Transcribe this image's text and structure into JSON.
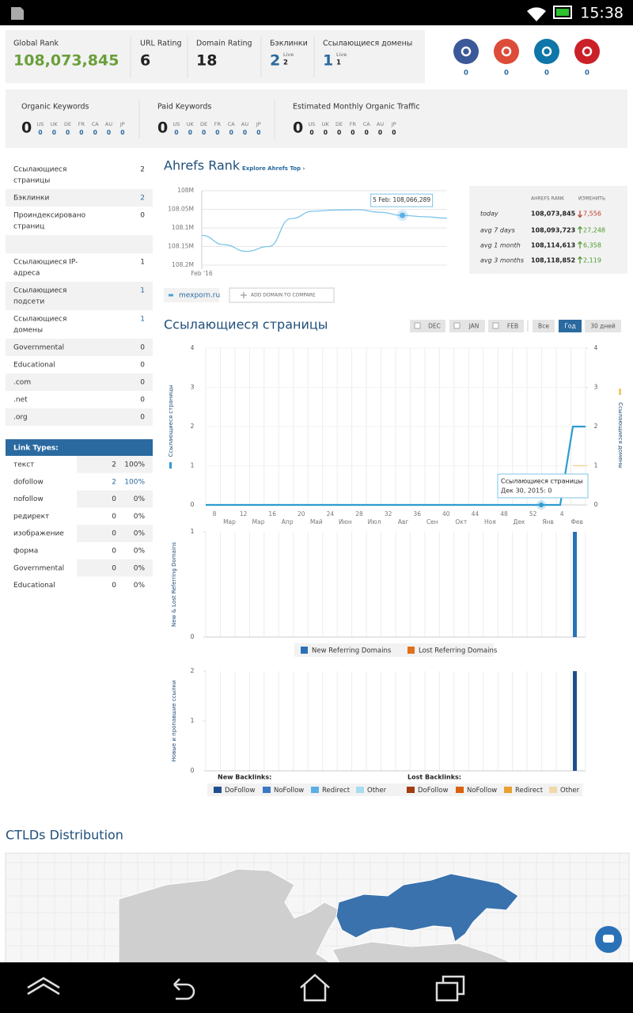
{
  "status_bar": {
    "time": "15:38"
  },
  "metrics": [
    {
      "label": "Global Rank",
      "value": "108,073,845"
    },
    {
      "label": "URL Rating",
      "value": "6"
    },
    {
      "label": "Domain Rating",
      "value": "18"
    },
    {
      "label": "Бэклинки",
      "value": "2",
      "live_label": "Live",
      "live_value": "2"
    },
    {
      "label": "Ссылающиеся домены",
      "value": "1",
      "live_label": "Live",
      "live_value": "1"
    }
  ],
  "social_counts": [
    "0",
    "0",
    "0",
    "0"
  ],
  "keywords": [
    {
      "label": "Organic Keywords",
      "value": "0",
      "countries": [
        "US",
        "UK",
        "DE",
        "FR",
        "CA",
        "AU",
        "JP"
      ],
      "counts": [
        "0",
        "0",
        "0",
        "0",
        "0",
        "0",
        "0"
      ]
    },
    {
      "label": "Paid Keywords",
      "value": "0",
      "countries": [
        "US",
        "UK",
        "DE",
        "FR",
        "CA",
        "AU",
        "JP"
      ],
      "counts": [
        "0",
        "0",
        "0",
        "0",
        "0",
        "0",
        "0"
      ]
    },
    {
      "label": "Estimated Monthly Organic Traffic",
      "value": "0",
      "countries": [
        "US",
        "UK",
        "DE",
        "FR",
        "CA",
        "AU",
        "JP"
      ],
      "counts": [
        "0",
        "0",
        "0",
        "0",
        "0",
        "0",
        "0"
      ]
    }
  ],
  "sidebar": [
    {
      "label": [
        "Ссылающиеся",
        "страницы"
      ],
      "value": "2"
    },
    {
      "label": [
        "Бэклинки"
      ],
      "value": "2",
      "linked": true
    },
    {
      "label": [
        "Проиндексировано",
        "страниц"
      ],
      "value": "0"
    },
    {
      "label": [
        "Ссылающиеся IP-",
        "адреса"
      ],
      "value": "1"
    },
    {
      "label": [
        "Ссылающиеся",
        "подсети"
      ],
      "value": "1",
      "linked": true
    },
    {
      "label": [
        "Ссылающиеся",
        "домены"
      ],
      "value": "1",
      "linked": true
    },
    {
      "label": [
        "Governmental"
      ],
      "value": "0"
    },
    {
      "label": [
        "Educational"
      ],
      "value": "0"
    },
    {
      "label": [
        ".com"
      ],
      "value": "0"
    },
    {
      "label": [
        ".net"
      ],
      "value": "0"
    },
    {
      "label": [
        ".org"
      ],
      "value": "0"
    }
  ],
  "link_types": {
    "title": "Link Types:",
    "rows": [
      [
        "текст",
        "2",
        "100%"
      ],
      [
        "dofollow",
        "2",
        "100%"
      ],
      [
        "nofollow",
        "0",
        "0%"
      ],
      [
        "редирект",
        "0",
        "0%"
      ],
      [
        "изображение",
        "0",
        "0%"
      ],
      [
        "форма",
        "0",
        "0%"
      ],
      [
        "Governmental",
        "0",
        "0%"
      ],
      [
        "Educational",
        "0",
        "0%"
      ]
    ],
    "linked_rows": [
      1
    ]
  },
  "rank": {
    "title": "Ahrefs Rank",
    "link": "Explore Ahrefs Top ›",
    "chart": {
      "type": "line",
      "xlabel": "Feb '16",
      "color": "#7cc4e8",
      "ylim": [
        108200000,
        108000000
      ],
      "yticks": [
        {
          "value": 108000000,
          "label": "108M"
        },
        {
          "value": 108050000,
          "label": "108.05M"
        },
        {
          "value": 108100000,
          "label": "108.1M"
        },
        {
          "value": 108150000,
          "label": "108.15M"
        },
        {
          "value": 108200000,
          "label": "108.2M"
        }
      ],
      "values": [
        108120000,
        108145000,
        108163000,
        108150000,
        108075000,
        108055000,
        108052000,
        108051000,
        108058000,
        108066289,
        108070000,
        108073845
      ],
      "tooltip": "5 Feb: 108,066,289"
    },
    "legend": "mexporn.ru",
    "compare": "ADD DOMAIN TO COMPARE",
    "table": {
      "headers": [
        "AHREFS RANK",
        "ИЗМЕНИТЬ"
      ],
      "rows": [
        [
          "today",
          "108,073,845",
          "7,556"
        ],
        [
          "avg 7 days",
          "108,093,723",
          "27,248"
        ],
        [
          "avg 1 month",
          "108,114,613",
          "6,358"
        ],
        [
          "avg 3 months",
          "108,118,852",
          "2,119"
        ]
      ],
      "directions": [
        "down",
        "up",
        "up",
        "up"
      ]
    }
  },
  "ref_pages": {
    "title": "Ссылающиеся страницы",
    "filters": [
      "DEC",
      "JAN",
      "FEB"
    ],
    "ranges": [
      "Все",
      "Год",
      "30 дней"
    ],
    "active_range": 1,
    "chart": {
      "type": "line",
      "ylim": [
        0,
        4
      ],
      "yticks": [
        0,
        1,
        2,
        3,
        4
      ],
      "y2lim": [
        0,
        4
      ],
      "y2ticks": [
        0,
        1,
        2,
        3,
        4
      ],
      "ylabel": "Ссылающиеся страницы",
      "y2label": "Ссылающиеся домены",
      "weeks": [
        "8",
        "12",
        "16",
        "20",
        "24",
        "28",
        "32",
        "36",
        "40",
        "44",
        "48",
        "52",
        "4"
      ],
      "months": [
        "Мар",
        "Мар",
        "Апр",
        "Май",
        "Июн",
        "Июл",
        "Авг",
        "Сен",
        "Окт",
        "Ноя",
        "Дек",
        "Янв",
        "Фев"
      ],
      "series": [
        {
          "color": "#2f9bd0",
          "values": [
            0,
            0,
            0,
            0,
            0,
            0,
            0,
            0,
            0,
            0,
            0,
            0,
            0,
            0,
            0,
            0,
            0,
            0,
            0,
            0,
            0,
            0,
            0,
            0,
            0,
            0,
            0,
            0,
            0,
            2,
            2
          ]
        },
        {
          "color": "#f0c870",
          "axis": "y2",
          "values": [
            null,
            null,
            null,
            null,
            null,
            null,
            null,
            null,
            null,
            null,
            null,
            null,
            null,
            null,
            null,
            null,
            null,
            null,
            null,
            null,
            null,
            null,
            null,
            null,
            null,
            null,
            null,
            null,
            null,
            1,
            1
          ]
        }
      ],
      "tooltip": {
        "title": "Ссылающиеся страницы",
        "text": "Дек 30, 2015: 0"
      }
    }
  },
  "domains_chart": {
    "type": "bar",
    "ylabel": "New & Lost Referring Domains",
    "ylim": [
      0,
      1
    ],
    "yticks": [
      0,
      1
    ],
    "series": [
      {
        "name": "New Referring Domains",
        "color": "#2a72b8",
        "values": [
          1
        ]
      },
      {
        "name": "Lost Referring Domains",
        "color": "#e0701c",
        "values": [
          0
        ]
      }
    ]
  },
  "backlinks_chart": {
    "type": "bar",
    "ylabel": "Новые и пропавшие ссылки",
    "ylim": [
      0,
      2
    ],
    "yticks": [
      0,
      1,
      2
    ],
    "groups": [
      {
        "title": "New Backlinks:",
        "series": [
          {
            "name": "DoFollow",
            "color": "#1f4e8c",
            "values": [
              2
            ]
          },
          {
            "name": "NoFollow",
            "color": "#3a78c4",
            "values": [
              0
            ]
          },
          {
            "name": "Redirect",
            "color": "#5aafe6",
            "values": [
              0
            ]
          },
          {
            "name": "Other",
            "color": "#a9dcf0",
            "values": [
              0
            ]
          }
        ]
      },
      {
        "title": "Lost Backlinks:",
        "series": [
          {
            "name": "DoFollow",
            "color": "#a33c10",
            "values": [
              0
            ]
          },
          {
            "name": "NoFollow",
            "color": "#d9620f",
            "values": [
              0
            ]
          },
          {
            "name": "Redirect",
            "color": "#e8a030",
            "values": [
              0
            ]
          },
          {
            "name": "Other",
            "color": "#f0d8a8",
            "values": [
              0
            ]
          }
        ]
      }
    ]
  },
  "ctlds": {
    "title": "CTLDs Distribution"
  }
}
